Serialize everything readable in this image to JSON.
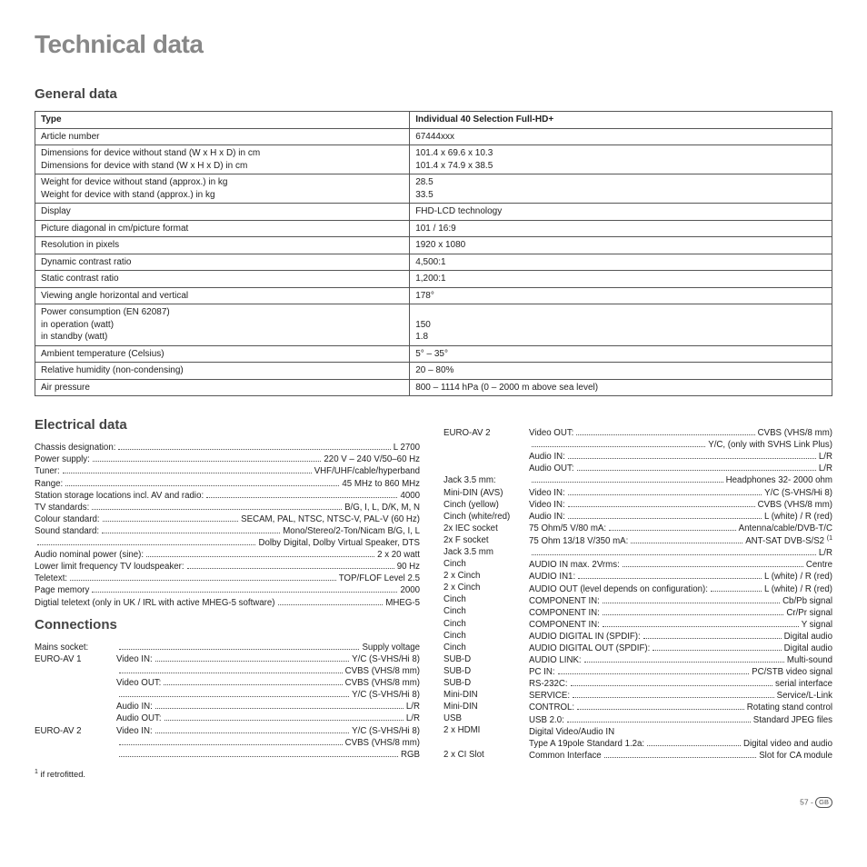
{
  "pageTitle": "Technical data",
  "sections": {
    "general": {
      "title": "General data",
      "headerRow": {
        "label": "Type",
        "value": "Individual 40 Selection Full-HD+"
      },
      "rows": [
        {
          "label": "Article number",
          "value": "67444xxx"
        },
        {
          "label": "Dimensions for device without stand (W x H x D) in cm\nDimensions for device with stand (W x H x D) in cm",
          "value": "101.4 x 69.6 x 10.3\n101.4 x 74.9 x 38.5"
        },
        {
          "label": "Weight for device without stand (approx.) in kg\nWeight for device with stand (approx.) in kg",
          "value": "28.5\n33.5"
        },
        {
          "label": "Display",
          "value": "FHD-LCD technology"
        },
        {
          "label": "Picture diagonal in cm/picture format",
          "value": "101 / 16:9"
        },
        {
          "label": "Resolution in pixels",
          "value": "1920 x 1080"
        },
        {
          "label": "Dynamic contrast ratio",
          "value": "4,500:1"
        },
        {
          "label": "Static contrast ratio",
          "value": "1,200:1"
        },
        {
          "label": "Viewing angle horizontal and vertical",
          "value": "178°"
        },
        {
          "label": "Power consumption (EN 62087)\nin operation (watt)\nin standby (watt)",
          "value": "\n150\n1.8"
        },
        {
          "label": "Ambient temperature (Celsius)",
          "value": "5° – 35°"
        },
        {
          "label": "Relative humidity (non-condensing)",
          "value": "20 – 80%"
        },
        {
          "label": "Air pressure",
          "value": "800 – 1114 hPa (0 – 2000 m above sea level)"
        }
      ]
    },
    "electrical": {
      "title": "Electrical data",
      "rows": [
        {
          "label": "Chassis designation:",
          "value": "L 2700"
        },
        {
          "label": "Power supply:",
          "value": "220 V – 240 V/50–60 Hz"
        },
        {
          "label": "Tuner:",
          "value": "VHF/UHF/cable/hyperband"
        },
        {
          "label": "Range:",
          "value": "45 MHz to 860 MHz"
        },
        {
          "label": "Station storage locations incl. AV and radio:",
          "value": "4000"
        },
        {
          "label": "TV standards:",
          "value": "B/G, I, L, D/K, M, N"
        },
        {
          "label": "Colour standard:",
          "value": "SECAM, PAL, NTSC,  NTSC-V, PAL-V (60 Hz)"
        },
        {
          "label": "Sound standard:",
          "value": "Mono/Stereo/2-Ton/Nicam B/G, I, L"
        },
        {
          "label": "",
          "value": "Dolby Digital, Dolby Virtual Speaker, DTS"
        },
        {
          "label": "Audio nominal power (sine):",
          "value": "2 x 20 watt"
        },
        {
          "label": "Lower limit frequency TV loudspeaker:",
          "value": "90 Hz"
        },
        {
          "label": "Teletext:",
          "value": "TOP/FLOF Level 2.5"
        },
        {
          "label": "Page memory",
          "value": "2000"
        },
        {
          "label": "Digtial teletext (only in UK / IRL with active MHEG-5 software)",
          "value": "MHEG-5"
        }
      ]
    },
    "connections": {
      "title": "Connections",
      "leftPorts": [
        "Mains socket:",
        "EURO-AV 1",
        "",
        "",
        "",
        "",
        "",
        "EURO-AV 2",
        "",
        ""
      ],
      "leftLines": [
        {
          "label": "",
          "value": "Supply voltage"
        },
        {
          "label": "Video IN:",
          "value": "Y/C (S-VHS/Hi 8)"
        },
        {
          "label": "",
          "value": "CVBS (VHS/8 mm)"
        },
        {
          "label": "Video OUT:",
          "value": "CVBS (VHS/8 mm)"
        },
        {
          "label": "",
          "value": "Y/C (S-VHS/Hi 8)"
        },
        {
          "label": "Audio IN:",
          "value": "L/R"
        },
        {
          "label": "Audio OUT:",
          "value": "L/R"
        },
        {
          "label": "Video IN:",
          "value": "Y/C (S-VHS/Hi 8)"
        },
        {
          "label": "",
          "value": "CVBS (VHS/8 mm)"
        },
        {
          "label": "",
          "value": "RGB"
        }
      ],
      "rightPorts": [
        "EURO-AV 2",
        "",
        "",
        "",
        "Jack 3.5 mm:",
        "Mini-DIN (AVS)",
        "Cinch (yellow)",
        "Cinch (white/red)",
        "2x IEC socket",
        "2x F socket",
        "Jack 3.5 mm",
        "Cinch",
        "2 x Cinch",
        "2 x Cinch",
        "Cinch",
        "Cinch",
        "Cinch",
        "Cinch",
        "Cinch",
        "SUB-D",
        "SUB-D",
        "SUB-D",
        "Mini-DIN",
        "Mini-DIN",
        "USB",
        "2 x HDMI",
        "",
        "2 x CI Slot"
      ],
      "rightLines": [
        {
          "label": "Video OUT:",
          "value": "CVBS (VHS/8 mm)"
        },
        {
          "label": "",
          "value": "Y/C, (only with SVHS Link Plus)"
        },
        {
          "label": "Audio IN:",
          "value": "L/R"
        },
        {
          "label": "Audio OUT:",
          "value": "L/R"
        },
        {
          "label": "",
          "value": "Headphones 32- 2000 ohm"
        },
        {
          "label": "Video IN:",
          "value": "Y/C (S-VHS/Hi 8)"
        },
        {
          "label": "Video IN:",
          "value": "CVBS (VHS/8 mm)"
        },
        {
          "label": "Audio IN:",
          "value": "L (white) / R (red)"
        },
        {
          "label": "75 Ohm/5 V/80 mA:",
          "value": "Antenna/cable/DVB-T/C"
        },
        {
          "label": "75 Ohm 13/18 V/350 mA:",
          "value": "ANT-SAT DVB-S/S2 ",
          "sup": "(1"
        },
        {
          "label": "",
          "value": "L/R"
        },
        {
          "label": "AUDIO IN max. 2Vrms:",
          "value": "Centre"
        },
        {
          "label": "AUDIO IN1:",
          "value": "L (white) / R (red)"
        },
        {
          "label": "AUDIO OUT (level depends on configuration):",
          "value": "L (white) / R (red)"
        },
        {
          "label": "COMPONENT IN:",
          "value": "Cb/Pb signal"
        },
        {
          "label": "COMPONENT IN:",
          "value": "Cr/Pr signal"
        },
        {
          "label": "COMPONENT IN:",
          "value": "Y signal"
        },
        {
          "label": "AUDIO DIGITAL IN (SPDIF):",
          "value": "Digital audio"
        },
        {
          "label": "AUDIO DIGITAL OUT (SPDIF):",
          "value": "Digital audio"
        },
        {
          "label": "AUDIO LINK:",
          "value": "Multi-sound"
        },
        {
          "label": "PC IN:",
          "value": "PC/STB video signal"
        },
        {
          "label": "RS-232C:",
          "value": "serial interface"
        },
        {
          "label": "SERVICE:",
          "value": "Service/L-Link"
        },
        {
          "label": "CONTROL:",
          "value": "Rotating stand control"
        },
        {
          "label": "USB 2.0:",
          "value": "Standard JPEG files"
        },
        {
          "label": "Digital Video/Audio IN",
          "value": "",
          "nofill": true
        },
        {
          "label": "Type A 19pole Standard 1.2a:",
          "value": "Digital video and audio"
        },
        {
          "label": "Common Interface",
          "value": "Slot for CA module"
        }
      ]
    }
  },
  "footnote": "if retrofitted.",
  "footnoteMarker": "1",
  "pageNum": "57 - ",
  "pageLocale": "GB"
}
